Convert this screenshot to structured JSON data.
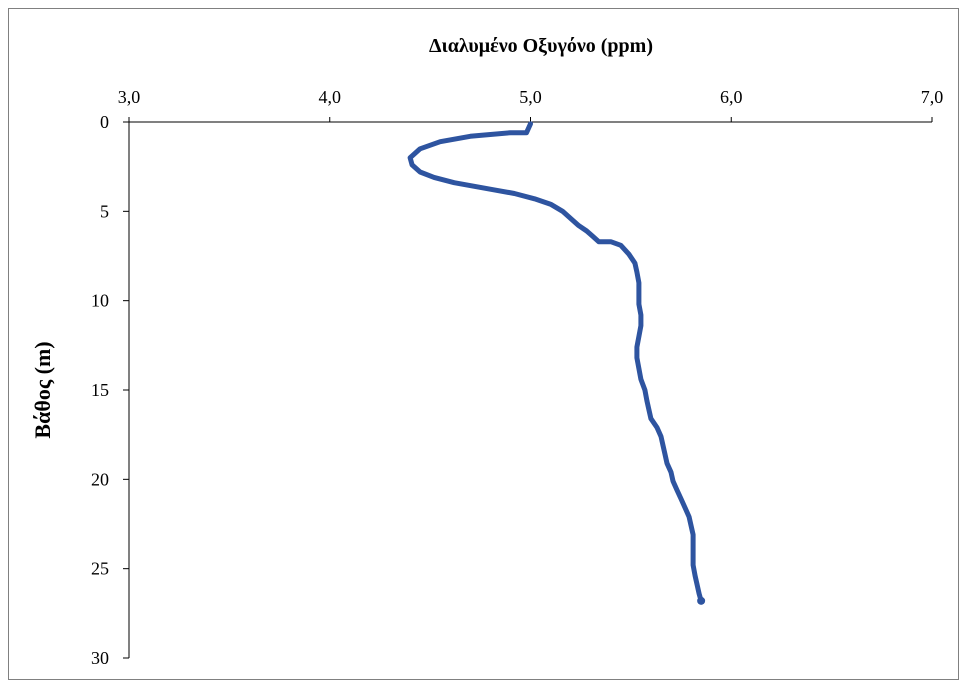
{
  "chart_data": {
    "type": "line",
    "title": "Διαλυμένο Οξυγόνο (ppm)",
    "xlabel": "Διαλυμένο Οξυγόνο (ppm)",
    "ylabel": "Βάθος (m)",
    "xlim": [
      3.0,
      7.0
    ],
    "ylim": [
      0,
      30
    ],
    "x_ticks": [
      3.0,
      4.0,
      5.0,
      6.0,
      7.0
    ],
    "x_tick_labels": [
      "3,0",
      "4,0",
      "5,0",
      "6,0",
      "7,0"
    ],
    "y_ticks": [
      0,
      5,
      10,
      15,
      20,
      25,
      30
    ],
    "y_tick_labels": [
      "0",
      "5",
      "10",
      "15",
      "20",
      "25",
      "30"
    ],
    "y_inverted": true,
    "x_axis_position": "top",
    "grid": false,
    "legend": "none",
    "series": [
      {
        "color": "#2E54A0",
        "x": [
          5.0,
          4.98,
          4.9,
          4.7,
          4.55,
          4.45,
          4.4,
          4.41,
          4.45,
          4.52,
          4.62,
          4.72,
          4.82,
          4.92,
          5.02,
          5.1,
          5.16,
          5.2,
          5.24,
          5.28,
          5.31,
          5.34,
          5.4,
          5.45,
          5.49,
          5.52,
          5.53,
          5.54,
          5.54,
          5.54,
          5.55,
          5.55,
          5.54,
          5.53,
          5.53,
          5.54,
          5.55,
          5.57,
          5.58,
          5.59,
          5.6,
          5.63,
          5.65,
          5.66,
          5.67,
          5.68,
          5.7,
          5.71,
          5.73,
          5.75,
          5.77,
          5.79,
          5.8,
          5.81,
          5.81,
          5.81,
          5.81,
          5.82,
          5.83,
          5.84,
          5.85
        ],
        "y": [
          0.1,
          0.6,
          0.6,
          0.8,
          1.1,
          1.5,
          2.0,
          2.4,
          2.8,
          3.1,
          3.4,
          3.6,
          3.8,
          4.0,
          4.3,
          4.6,
          5.0,
          5.4,
          5.8,
          6.1,
          6.4,
          6.7,
          6.7,
          6.9,
          7.4,
          7.9,
          8.4,
          9.0,
          9.6,
          10.2,
          10.8,
          11.4,
          12.0,
          12.6,
          13.2,
          13.8,
          14.4,
          15.0,
          15.6,
          16.1,
          16.6,
          17.1,
          17.6,
          18.1,
          18.6,
          19.1,
          19.6,
          20.1,
          20.6,
          21.1,
          21.6,
          22.1,
          22.6,
          23.1,
          23.6,
          24.2,
          24.8,
          25.4,
          25.9,
          26.4,
          26.8
        ]
      }
    ]
  }
}
